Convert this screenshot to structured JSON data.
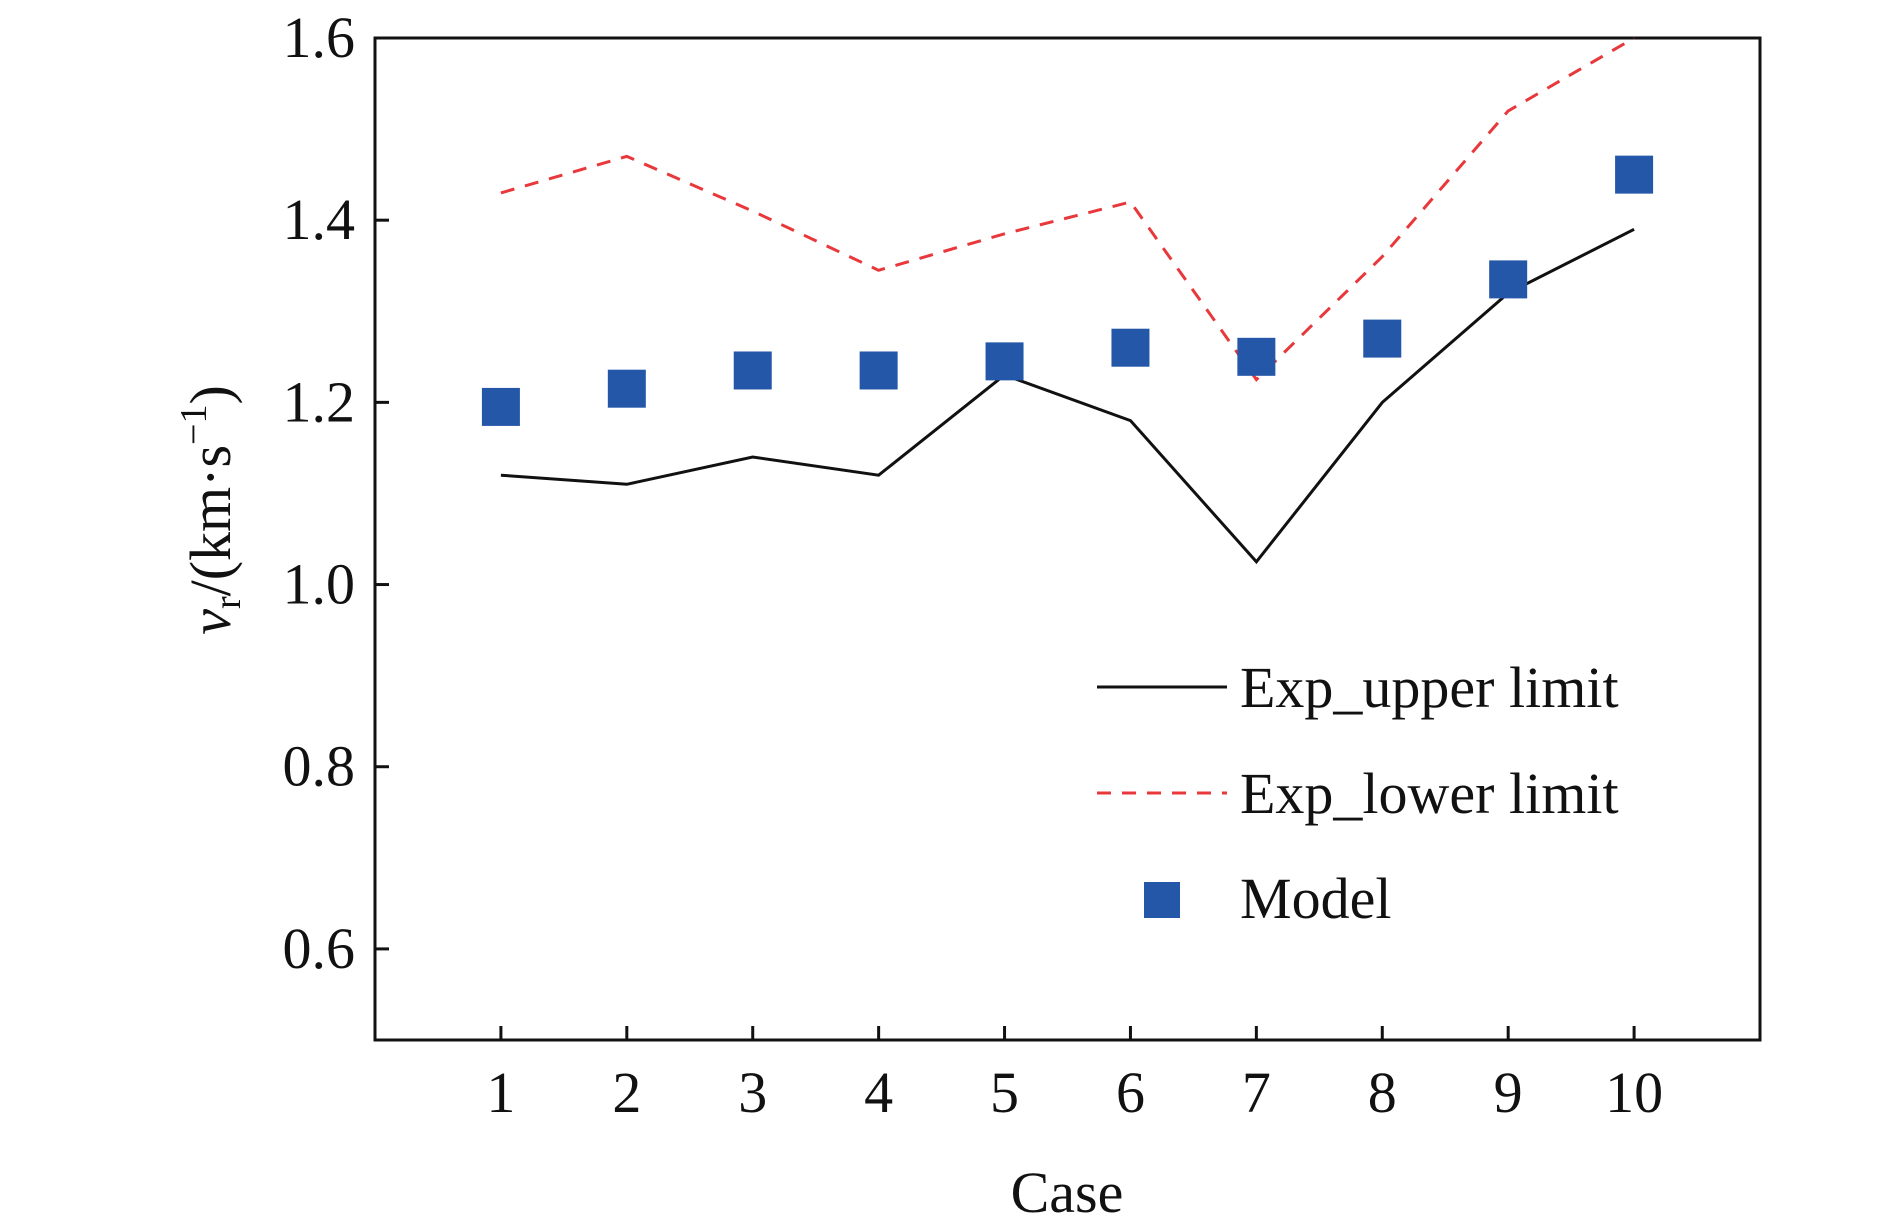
{
  "chart_data": {
    "type": "line",
    "xlabel": "Case",
    "ylabel": {
      "symbol": "v",
      "subscript": "r",
      "unit_prefix": "/(km·s",
      "superscript": "−1",
      "unit_suffix": ")"
    },
    "x": [
      1,
      2,
      3,
      4,
      5,
      6,
      7,
      8,
      9,
      10
    ],
    "xticks": [
      "1",
      "2",
      "3",
      "4",
      "5",
      "6",
      "7",
      "8",
      "9",
      "10"
    ],
    "xlim": [
      0,
      11
    ],
    "ylim": [
      0.5,
      1.6
    ],
    "yticks": [
      {
        "value": 0.6,
        "label": "0.6"
      },
      {
        "value": 0.8,
        "label": "0.8"
      },
      {
        "value": 1.0,
        "label": "1.0"
      },
      {
        "value": 1.2,
        "label": "1.2"
      },
      {
        "value": 1.4,
        "label": "1.4"
      },
      {
        "value": 1.6,
        "label": "1.6"
      }
    ],
    "grid": false,
    "legend_position": "bottom-right",
    "series": [
      {
        "name": "Exp_upper limit",
        "style": "solid-line",
        "color": "#111111",
        "values": [
          1.12,
          1.11,
          1.14,
          1.12,
          1.23,
          1.18,
          1.025,
          1.2,
          1.32,
          1.39
        ]
      },
      {
        "name": "Exp_lower limit",
        "style": "dashed-line",
        "color": "#e8383b",
        "values": [
          1.43,
          1.47,
          1.41,
          1.345,
          1.385,
          1.42,
          1.225,
          1.36,
          1.52,
          1.6
        ]
      },
      {
        "name": "Model",
        "style": "square-markers",
        "color": "#2457a8",
        "values": [
          1.195,
          1.215,
          1.235,
          1.235,
          1.245,
          1.26,
          1.25,
          1.27,
          1.335,
          1.45
        ]
      }
    ]
  }
}
